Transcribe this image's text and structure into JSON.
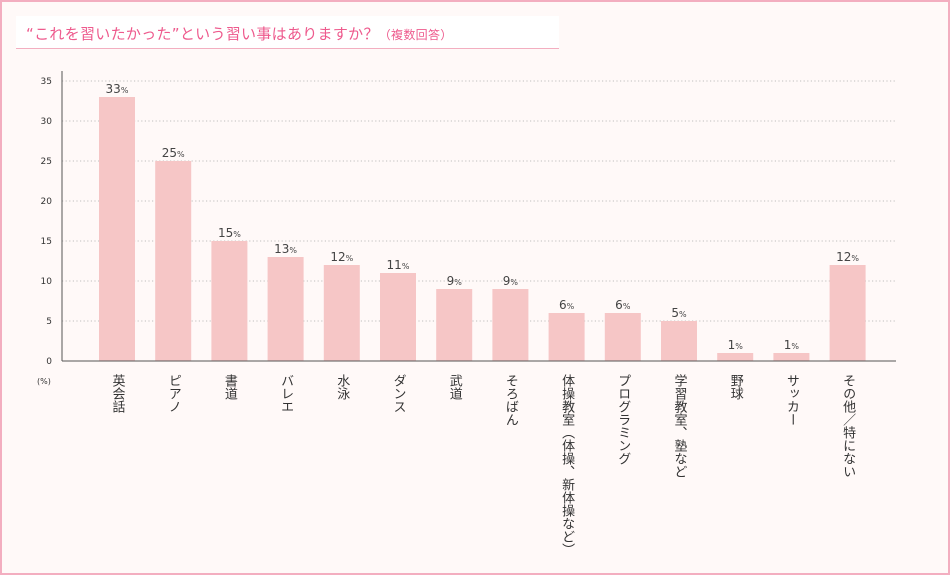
{
  "title": {
    "main": "“これを習いたかった”という習い事はありますか？",
    "note": "（複数回答）"
  },
  "colors": {
    "bar": "#f6c6c6",
    "frame": "#f3aec0",
    "title": "#ee5a8d",
    "background": "#fff9f8",
    "grid": "#aaaaaa"
  },
  "chart_data": {
    "type": "bar",
    "title": "“これを習いたかった”という習い事はありますか？（複数回答）",
    "xlabel": "",
    "ylabel": "(%)",
    "ylim": [
      0,
      35
    ],
    "yticks": [
      0,
      5,
      10,
      15,
      20,
      25,
      30,
      35
    ],
    "grid": true,
    "value_suffix": "%",
    "categories": [
      "英会話",
      "ピアノ",
      "書道",
      "バレエ",
      "水泳",
      "ダンス",
      "武道",
      "そろばん",
      "体操教室（体操、新体操など）",
      "プログラミング",
      "学習教室、塾など",
      "野球",
      "サッカー",
      "その他／特にない"
    ],
    "values": [
      33,
      25,
      15,
      13,
      12,
      11,
      9,
      9,
      6,
      6,
      5,
      1,
      1,
      12
    ]
  }
}
